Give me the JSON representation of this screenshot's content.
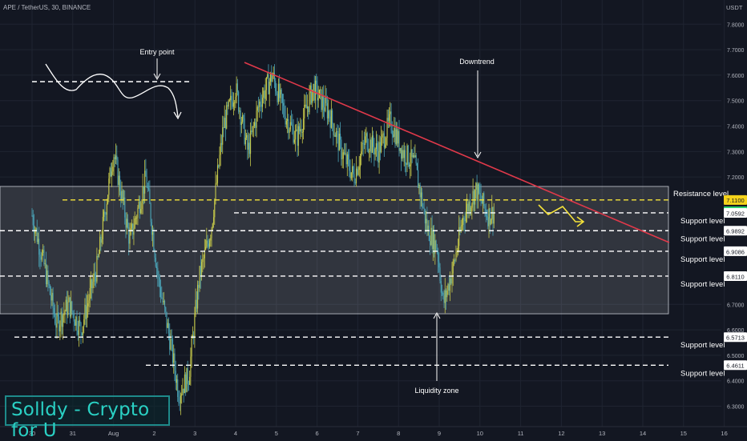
{
  "header": {
    "symbol_line": "APE / TetherUS, 30, BINANCE",
    "currency": "USDT"
  },
  "brand": {
    "text": "Solldy - Crypto for U"
  },
  "colors": {
    "background": "#131722",
    "candle_up": "#c6c94a",
    "candle_down": "#4aa3b6",
    "trendline": "#e0394a",
    "resistance_line": "#f5e33a",
    "support_line": "#ffffff",
    "zone_fill": "#ffffff",
    "current_price_tag": "#2fd36f",
    "resistance_tag": "#f5d31a"
  },
  "chart_data": {
    "type": "candlestick",
    "ylim": [
      6.22,
      7.87
    ],
    "y_ticks": [
      "7.8000",
      "7.7000",
      "7.6000",
      "7.5000",
      "7.4000",
      "7.3000",
      "7.2000",
      "6.7000",
      "6.6000",
      "6.5000",
      "6.4000",
      "6.3000"
    ],
    "x_ticks": [
      "30",
      "31",
      "Aug",
      "2",
      "3",
      "4",
      "5",
      "6",
      "7",
      "8",
      "9",
      "10",
      "11",
      "12",
      "13",
      "14",
      "15",
      "16"
    ],
    "price_path": [
      [
        0.0,
        7.05
      ],
      [
        0.3,
        6.85
      ],
      [
        0.6,
        6.62
      ],
      [
        0.9,
        6.7
      ],
      [
        1.2,
        6.6
      ],
      [
        1.6,
        6.85
      ],
      [
        2.0,
        7.3
      ],
      [
        2.4,
        6.95
      ],
      [
        2.8,
        7.2
      ],
      [
        3.1,
        6.8
      ],
      [
        3.4,
        6.55
      ],
      [
        3.6,
        6.35
      ],
      [
        3.85,
        6.42
      ],
      [
        4.1,
        6.8
      ],
      [
        4.4,
        7.0
      ],
      [
        4.7,
        7.4
      ],
      [
        5.0,
        7.55
      ],
      [
        5.3,
        7.3
      ],
      [
        5.6,
        7.5
      ],
      [
        5.9,
        7.6
      ],
      [
        6.2,
        7.45
      ],
      [
        6.5,
        7.35
      ],
      [
        6.9,
        7.55
      ],
      [
        7.3,
        7.45
      ],
      [
        7.6,
        7.3
      ],
      [
        7.9,
        7.2
      ],
      [
        8.2,
        7.35
      ],
      [
        8.5,
        7.3
      ],
      [
        8.8,
        7.42
      ],
      [
        9.1,
        7.3
      ],
      [
        9.4,
        7.25
      ],
      [
        9.7,
        7.0
      ],
      [
        9.95,
        6.92
      ],
      [
        10.1,
        6.7
      ],
      [
        10.35,
        6.85
      ],
      [
        10.6,
        7.05
      ],
      [
        10.9,
        7.15
      ],
      [
        11.2,
        7.05
      ],
      [
        11.35,
        7.06
      ]
    ],
    "annotations": [
      {
        "text": "Entry point"
      },
      {
        "text": "Downtrend"
      },
      {
        "text": "Liquidity zone"
      }
    ],
    "levels": [
      {
        "price": 7.11,
        "tag": "7.1100",
        "label": "Resistance level",
        "style": "yellow"
      },
      {
        "price": 7.0656,
        "tag": "7.0656",
        "label": "",
        "style": "green"
      },
      {
        "price": 7.0592,
        "tag": "7.0592",
        "label": "Support level",
        "style": "white"
      },
      {
        "price": 6.9892,
        "tag": "6.9892",
        "label": "Support level",
        "style": "white"
      },
      {
        "price": 6.9086,
        "tag": "6.9086",
        "label": "Support level",
        "style": "white"
      },
      {
        "price": 6.811,
        "tag": "6.8110",
        "label": "Support level",
        "style": "white"
      },
      {
        "price": 6.5713,
        "tag": "6.5713",
        "label": "Support level",
        "style": "white"
      },
      {
        "price": 6.4611,
        "tag": "6.4611",
        "label": "Support level",
        "style": "white"
      }
    ]
  }
}
